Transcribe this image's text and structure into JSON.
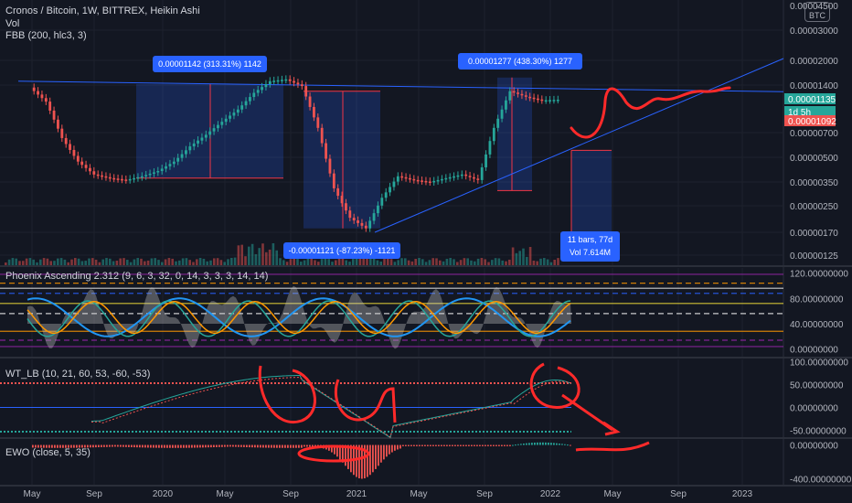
{
  "header": {
    "symbol_line": "Cronos / Bitcoin, 1W, BITTREX, Heikin Ashi",
    "vol_label": "Vol",
    "fbb_label": "FBB (200, hlc3, 3)",
    "currency_badge": "BTC",
    "top_axis_value": "0.00004500"
  },
  "main_axis": {
    "ticks": [
      "0.00003000",
      "0.00002000",
      "0.00001400",
      "0.00000700",
      "0.00000500",
      "0.00000350",
      "0.00000250",
      "0.00000170",
      "0.00000125"
    ],
    "price_badges": [
      {
        "label": "0.00001135",
        "color": "#26a69a"
      },
      {
        "label": "1d 5h",
        "color": "#26a69a"
      },
      {
        "label": "0.00001092",
        "color": "#ef5350"
      }
    ],
    "scale": "log"
  },
  "x_axis": {
    "labels": [
      "May",
      "Sep",
      "2020",
      "May",
      "Sep",
      "2021",
      "May",
      "Sep",
      "2022",
      "May",
      "Sep",
      "2023"
    ]
  },
  "annotations": {
    "box1_label": "0.00001142 (313.31%) 1142",
    "box2_label": "-0.00001121 (-87.23%) -1121",
    "box3_label": "0.00001277 (438.30%) 1277",
    "projection_bars": "11 bars, 77d",
    "projection_vol": "Vol 7.614M"
  },
  "indicators": {
    "phoenix": {
      "label": "Phoenix Ascending 2.312 (9, 6, 3, 32, 0, 14, 3, 3, 3, 14, 14)",
      "ticks": [
        "120.00000000",
        "80.00000000",
        "40.00000000",
        "0.00000000"
      ]
    },
    "wt": {
      "label": "WT_LB (10, 21, 60, 53, -60, -53)",
      "ticks": [
        "100.00000000",
        "50.00000000",
        "0.00000000",
        "-50.00000000"
      ]
    },
    "ewo": {
      "label": "EWO (close, 5, 35)",
      "ticks": [
        "0.00000000",
        "-400.00000000"
      ]
    }
  },
  "colors": {
    "background": "#131722",
    "up": "#26a69a",
    "down": "#ef5350",
    "annotation_blue": "#2962ff",
    "drawing_red": "#ff2a2a"
  },
  "chart_data": {
    "type": "line",
    "title": "Cronos / Bitcoin, 1W, BITTREX, Heikin Ashi",
    "y_scale": "log",
    "ylim": [
      1.2e-06,
      4.5e-05
    ],
    "x": [
      "2019-05",
      "2019-06",
      "2019-07",
      "2019-08",
      "2019-09",
      "2019-10",
      "2019-11",
      "2019-12",
      "2020-01",
      "2020-02",
      "2020-03",
      "2020-04",
      "2020-05",
      "2020-06",
      "2020-07",
      "2020-08",
      "2020-09",
      "2020-10",
      "2020-11",
      "2020-12",
      "2021-01",
      "2021-02",
      "2021-03",
      "2021-04",
      "2021-05",
      "2021-06",
      "2021-07",
      "2021-08",
      "2021-09",
      "2021-10",
      "2021-11",
      "2021-12",
      "2022-01",
      "2022-02"
    ],
    "series": [
      {
        "values": [
          1.35e-05,
          1.1e-05,
          6.5e-06,
          4.7e-06,
          3.9e-06,
          3.7e-06,
          3.6e-06,
          3.8e-06,
          4.1e-06,
          4.7e-06,
          5.8e-06,
          6.8e-06,
          8.2e-06,
          9.8e-06,
          1.25e-05,
          1.48e-05,
          1.52e-05,
          1.38e-05,
          7.5e-06,
          3.2e-06,
          2.1e-06,
          1.8e-06,
          2.8e-06,
          3.8e-06,
          3.6e-06,
          3.5e-06,
          3.7e-06,
          3.9e-06,
          3.6e-06,
          7.5e-06,
          1.28e-05,
          1.18e-05,
          1.12e-05,
          1.13e-05
        ]
      }
    ],
    "grid": true
  }
}
